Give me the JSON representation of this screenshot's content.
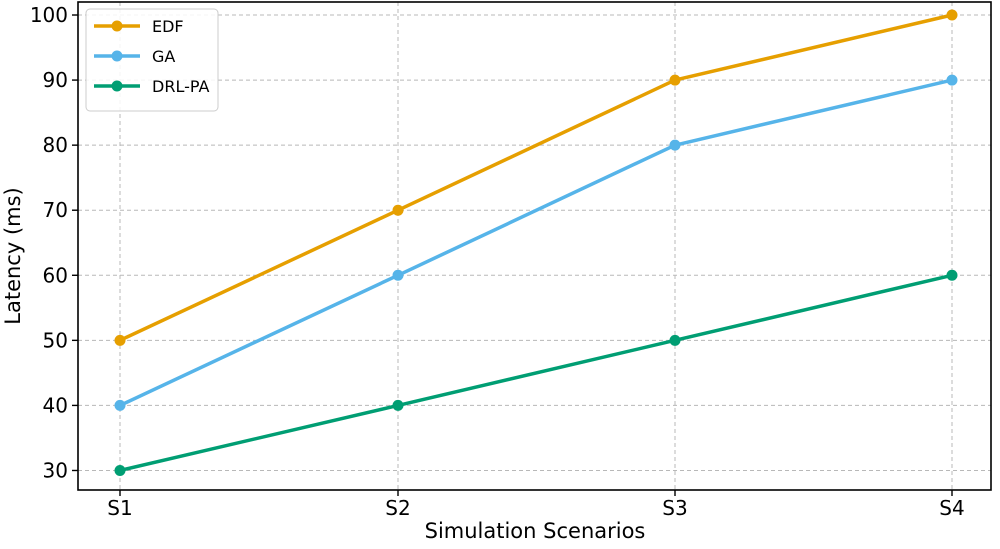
{
  "chart_data": {
    "type": "line",
    "categories": [
      "S1",
      "S2",
      "S3",
      "S4"
    ],
    "series": [
      {
        "name": "EDF",
        "values": [
          50,
          70,
          90,
          100
        ],
        "color": "#E69F00"
      },
      {
        "name": "GA",
        "values": [
          40,
          60,
          80,
          90
        ],
        "color": "#56B4E9"
      },
      {
        "name": "DRL-PA",
        "values": [
          30,
          40,
          50,
          60
        ],
        "color": "#009E73"
      }
    ],
    "title": "",
    "xlabel": "Simulation Scenarios",
    "ylabel": "Latency (ms)",
    "ylim": [
      27,
      102
    ],
    "yticks": [
      30,
      40,
      50,
      60,
      70,
      80,
      90,
      100
    ],
    "grid": true,
    "legend_position": "top-left",
    "marker": "circle"
  }
}
